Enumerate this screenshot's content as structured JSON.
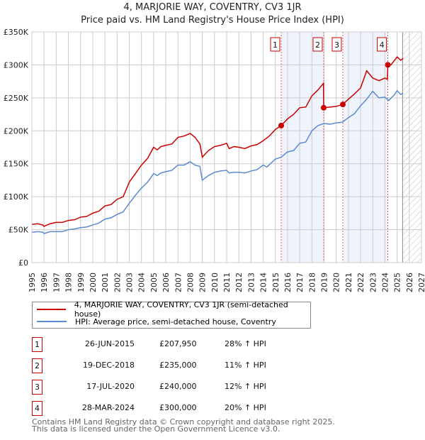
{
  "chart_data": {
    "type": "line",
    "title": "4, MARJORIE WAY, COVENTRY, CV3 1JR",
    "subtitle": "Price paid vs. HM Land Registry's House Price Index (HPI)",
    "xlim": [
      1995,
      2027
    ],
    "ylim": [
      0,
      350000
    ],
    "x_ticks": [
      "1995",
      "1996",
      "1997",
      "1998",
      "1999",
      "2000",
      "2001",
      "2002",
      "2003",
      "2004",
      "2005",
      "2006",
      "2007",
      "2008",
      "2009",
      "2010",
      "2011",
      "2012",
      "2013",
      "2014",
      "2015",
      "2016",
      "2017",
      "2018",
      "2019",
      "2020",
      "2021",
      "2022",
      "2023",
      "2024",
      "2025",
      "2026",
      "2027"
    ],
    "y_ticks": [
      {
        "v": 0,
        "label": "£0"
      },
      {
        "v": 50000,
        "label": "£50K"
      },
      {
        "v": 100000,
        "label": "£100K"
      },
      {
        "v": 150000,
        "label": "£150K"
      },
      {
        "v": 200000,
        "label": "£200K"
      },
      {
        "v": 250000,
        "label": "£250K"
      },
      {
        "v": 300000,
        "label": "£300K"
      },
      {
        "v": 350000,
        "label": "£350K"
      }
    ],
    "grid": true,
    "shaded_ranges": [
      [
        2015.48,
        2018.97
      ],
      [
        2020.54,
        2024.24
      ]
    ],
    "forecast_from": 2025.45,
    "series": [
      {
        "name": "4, MARJORIE WAY, COVENTRY, CV3 1JR (semi-detached house)",
        "color": "#cc0000",
        "x": [
          1995,
          1995.5,
          1995.9,
          1996,
          1996.5,
          1997,
          1997.5,
          1998,
          1998.5,
          1999,
          1999.5,
          2000,
          2000.5,
          2001,
          2001.5,
          2002,
          2002.5,
          2003,
          2003.5,
          2004,
          2004.5,
          2005,
          2005.3,
          2005.6,
          2006,
          2006.5,
          2007,
          2007.5,
          2008,
          2008.4,
          2008.8,
          2009,
          2009.5,
          2010,
          2010.5,
          2011,
          2011.2,
          2011.6,
          2012,
          2012.5,
          2013,
          2013.5,
          2014,
          2014.5,
          2015,
          2015.48,
          2016,
          2016.5,
          2017,
          2017.5,
          2018,
          2018.5,
          2018.95,
          2018.97,
          2019.5,
          2020,
          2020.54,
          2021,
          2021.5,
          2022,
          2022.5,
          2023,
          2023.5,
          2024,
          2024.2,
          2024.24,
          2024.5,
          2025,
          2025.3,
          2025.5
        ],
        "y": [
          58000,
          59000,
          57000,
          55000,
          59000,
          61000,
          61000,
          64000,
          65000,
          69000,
          70000,
          75000,
          78000,
          86000,
          88000,
          96000,
          100000,
          122000,
          135000,
          148000,
          158000,
          175000,
          171000,
          176000,
          178000,
          180000,
          190000,
          192000,
          196000,
          190000,
          180000,
          160000,
          170000,
          176000,
          178000,
          181000,
          173000,
          176000,
          175000,
          173000,
          177000,
          179000,
          185000,
          192000,
          202000,
          207950,
          218000,
          225000,
          235000,
          236000,
          253000,
          262000,
          272000,
          235000,
          236000,
          237000,
          240000,
          248000,
          256000,
          265000,
          291000,
          280000,
          276000,
          280000,
          278000,
          300000,
          300000,
          312000,
          307000,
          310000
        ]
      },
      {
        "name": "HPI: Average price, semi-detached house, Coventry",
        "color": "#5b8bd0",
        "x": [
          1995,
          1995.5,
          1995.9,
          1996,
          1996.5,
          1997,
          1997.5,
          1998,
          1998.5,
          1999,
          1999.5,
          2000,
          2000.5,
          2001,
          2001.5,
          2002,
          2002.5,
          2003,
          2003.5,
          2004,
          2004.5,
          2005,
          2005.3,
          2005.6,
          2006,
          2006.5,
          2007,
          2007.5,
          2008,
          2008.4,
          2008.8,
          2009,
          2009.5,
          2010,
          2010.5,
          2011,
          2011.2,
          2011.6,
          2012,
          2012.5,
          2013,
          2013.5,
          2014,
          2014.3,
          2015,
          2015.48,
          2016,
          2016.5,
          2017,
          2017.5,
          2018,
          2018.5,
          2019,
          2019.5,
          2020,
          2020.5,
          2021,
          2021.5,
          2022,
          2022.5,
          2023,
          2023.5,
          2024,
          2024.3,
          2024.8,
          2025,
          2025.3,
          2025.5
        ],
        "y": [
          46000,
          47000,
          46000,
          44000,
          47000,
          47000,
          47000,
          50000,
          51000,
          53000,
          54000,
          57000,
          60000,
          66000,
          68000,
          73000,
          77000,
          90000,
          102000,
          113000,
          122000,
          135000,
          132000,
          136000,
          138000,
          140000,
          148000,
          148000,
          153000,
          148000,
          146000,
          125000,
          132000,
          137000,
          139000,
          140000,
          136000,
          137000,
          137000,
          136000,
          139000,
          141000,
          148000,
          145000,
          157000,
          160000,
          168000,
          170000,
          181000,
          183000,
          200000,
          208000,
          211000,
          210000,
          212000,
          213000,
          220000,
          226000,
          238000,
          248000,
          260000,
          250000,
          251000,
          246000,
          255000,
          261000,
          255000,
          257000
        ]
      }
    ],
    "markers": [
      {
        "label": "1",
        "x": 2015.48,
        "y": 207950
      },
      {
        "label": "2",
        "x": 2018.97,
        "y": 235000
      },
      {
        "label": "3",
        "x": 2020.54,
        "y": 240000
      },
      {
        "label": "4",
        "x": 2024.24,
        "y": 300000
      }
    ]
  },
  "legend": {
    "red": "4, MARJORIE WAY, COVENTRY, CV3 1JR (semi-detached house)",
    "blue": "HPI: Average price, semi-detached house, Coventry"
  },
  "sales": [
    {
      "num": "1",
      "date": "26-JUN-2015",
      "price": "£207,950",
      "hpi": "28% ↑ HPI"
    },
    {
      "num": "2",
      "date": "19-DEC-2018",
      "price": "£235,000",
      "hpi": "11% ↑ HPI"
    },
    {
      "num": "3",
      "date": "17-JUL-2020",
      "price": "£240,000",
      "hpi": "12% ↑ HPI"
    },
    {
      "num": "4",
      "date": "28-MAR-2024",
      "price": "£300,000",
      "hpi": "20% ↑ HPI"
    }
  ],
  "footer": {
    "line1": "Contains HM Land Registry data © Crown copyright and database right 2025.",
    "line2": "This data is licensed under the Open Government Licence v3.0."
  }
}
